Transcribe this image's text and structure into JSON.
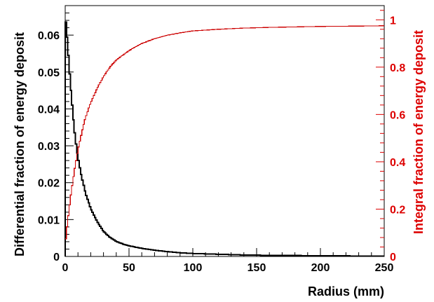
{
  "chart_data": {
    "type": "line",
    "xlabel": "Radius (mm)",
    "ylabel": "Differential fraction of energy deposit",
    "y2label": "Integral fraction of energy deposit",
    "xlim": [
      0,
      250
    ],
    "ylim": [
      0,
      0.068
    ],
    "y2lim": [
      0,
      1.06
    ],
    "grid": false,
    "x_ticks": [
      "0",
      "50",
      "100",
      "150",
      "200",
      "250"
    ],
    "y_ticks": [
      "0",
      "0.01",
      "0.02",
      "0.03",
      "0.04",
      "0.05",
      "0.06"
    ],
    "y2_ticks": [
      "0",
      "0.2",
      "0.4",
      "0.6",
      "0.8",
      "1"
    ],
    "series": [
      {
        "axis": "left",
        "color": "#000000",
        "style": "step",
        "x": [
          0,
          1,
          2,
          3,
          4,
          5,
          6,
          7,
          8,
          9,
          10,
          12,
          14,
          16,
          18,
          20,
          25,
          30,
          35,
          40,
          45,
          50,
          60,
          70,
          80,
          90,
          100,
          120,
          140,
          160,
          180,
          200,
          220,
          240,
          250
        ],
        "y": [
          0.065,
          0.062,
          0.057,
          0.052,
          0.047,
          0.043,
          0.039,
          0.035,
          0.032,
          0.029,
          0.027,
          0.023,
          0.02,
          0.017,
          0.015,
          0.013,
          0.0095,
          0.0068,
          0.0052,
          0.0041,
          0.0034,
          0.0029,
          0.0022,
          0.0017,
          0.0013,
          0.001,
          0.0008,
          0.0006,
          0.0004,
          0.0003,
          0.00025,
          0.0002,
          0.00015,
          0.0001,
          0.0001
        ]
      },
      {
        "axis": "right",
        "color": "#cc0000",
        "style": "step",
        "x": [
          0,
          2,
          4,
          6,
          8,
          10,
          12,
          15,
          18,
          20,
          25,
          30,
          35,
          40,
          45,
          50,
          60,
          70,
          80,
          90,
          100,
          120,
          140,
          160,
          180,
          200,
          220,
          240,
          250
        ],
        "y": [
          0.05,
          0.15,
          0.24,
          0.32,
          0.39,
          0.45,
          0.5,
          0.57,
          0.62,
          0.65,
          0.71,
          0.76,
          0.8,
          0.83,
          0.85,
          0.87,
          0.9,
          0.92,
          0.935,
          0.945,
          0.953,
          0.96,
          0.965,
          0.968,
          0.97,
          0.972,
          0.973,
          0.974,
          0.975
        ]
      }
    ]
  }
}
